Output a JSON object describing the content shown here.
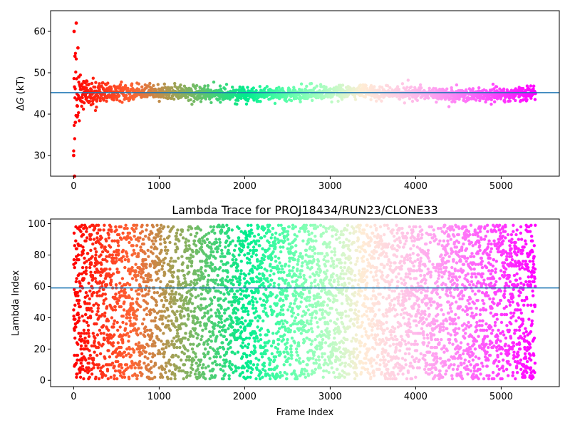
{
  "chart_data": [
    {
      "type": "scatter",
      "title": "",
      "xlabel": "",
      "ylabel": "ΔG (kT)",
      "ylabel_parts": {
        "symbol": "Δ",
        "var": "G",
        "unit": " (kT)"
      },
      "xlim": [
        -270,
        5680
      ],
      "ylim": [
        25,
        65
      ],
      "xticks": [
        0,
        1000,
        2000,
        3000,
        4000,
        5000
      ],
      "xtick_labels": [
        "0",
        "1000",
        "2000",
        "3000",
        "4000",
        "5000"
      ],
      "yticks": [
        30,
        40,
        50,
        60
      ],
      "ytick_labels": [
        "30",
        "40",
        "50",
        "60"
      ],
      "n_frames": 5400,
      "converged_value": 45.0,
      "reference_line": {
        "y": 45.2,
        "color": "#1f77b4"
      },
      "colormap": "rainbow (red at frame 0 → violet at last frame)",
      "grid": false,
      "series": [
        {
          "description_points": [
            {
              "x": 0,
              "y": 30
            },
            {
              "x": 5,
              "y": 60
            },
            {
              "x": 10,
              "y": 25
            },
            {
              "x": 15,
              "y": 54
            },
            {
              "x": 20,
              "y": 38
            },
            {
              "x": 30,
              "y": 62
            },
            {
              "x": 40,
              "y": 42
            },
            {
              "x": 50,
              "y": 56
            },
            {
              "x": 60,
              "y": 49
            },
            {
              "x": 80,
              "y": 46
            },
            {
              "x": 100,
              "y": 43
            },
            {
              "x": 150,
              "y": 48
            },
            {
              "x": 200,
              "y": 44
            },
            {
              "x": 300,
              "y": 46
            },
            {
              "x": 500,
              "y": 45.5
            },
            {
              "x": 1000,
              "y": 45.3
            },
            {
              "x": 1500,
              "y": 45.6
            },
            {
              "x": 2000,
              "y": 45.2
            },
            {
              "x": 3000,
              "y": 44.9
            },
            {
              "x": 4000,
              "y": 45.1
            },
            {
              "x": 5000,
              "y": 45.1
            },
            {
              "x": 5400,
              "y": 45.0
            }
          ]
        }
      ]
    },
    {
      "type": "scatter",
      "title": "Lambda Trace for PROJ18434/RUN23/CLONE33",
      "xlabel": "Frame Index",
      "ylabel": "Lambda Index",
      "xlim": [
        -270,
        5680
      ],
      "ylim": [
        -4,
        103
      ],
      "xticks": [
        0,
        1000,
        2000,
        3000,
        4000,
        5000
      ],
      "xtick_labels": [
        "0",
        "1000",
        "2000",
        "3000",
        "4000",
        "5000"
      ],
      "yticks": [
        0,
        20,
        40,
        60,
        80,
        100
      ],
      "ytick_labels": [
        "0",
        "20",
        "40",
        "60",
        "80",
        "100"
      ],
      "n_frames": 5400,
      "lambda_range": [
        1,
        99
      ],
      "reference_line": {
        "y": 59,
        "color": "#1f77b4"
      },
      "colormap": "rainbow (red at frame 0 → violet at last frame)",
      "grid": false
    }
  ]
}
